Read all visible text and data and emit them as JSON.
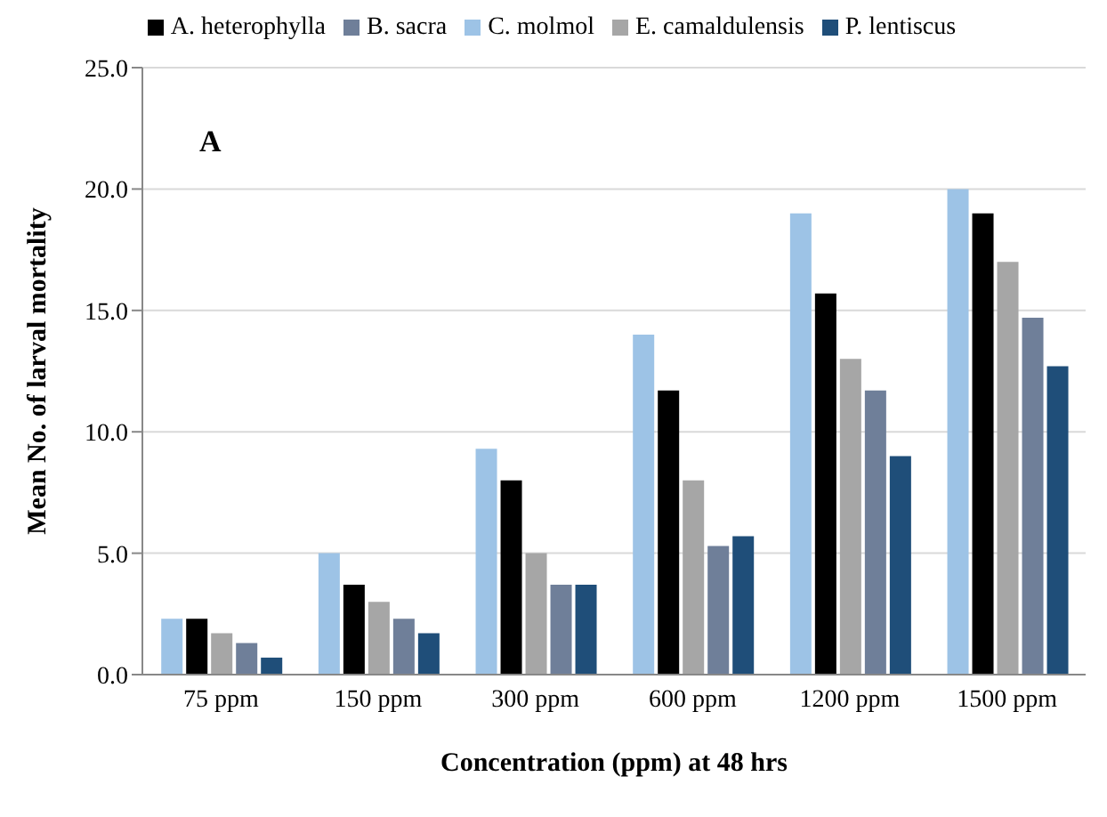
{
  "chart_data": {
    "type": "bar",
    "categories": [
      "75 ppm",
      "150 ppm",
      "300 ppm",
      "600 ppm",
      "1200 ppm",
      "1500 ppm"
    ],
    "series": [
      {
        "name": "C. molmol",
        "color": "#9dc3e6",
        "values": [
          2.3,
          5.0,
          9.3,
          14.0,
          19.0,
          20.0
        ]
      },
      {
        "name": "A. heterophylla",
        "color": "#000000",
        "values": [
          2.3,
          3.7,
          8.0,
          11.7,
          15.7,
          19.0
        ]
      },
      {
        "name": "E. camaldulensis",
        "color": "#a6a6a6",
        "values": [
          1.7,
          3.0,
          5.0,
          8.0,
          13.0,
          17.0
        ]
      },
      {
        "name": "B. sacra",
        "color": "#6f7f99",
        "values": [
          1.3,
          2.3,
          3.7,
          5.3,
          11.7,
          14.7
        ]
      },
      {
        "name": "P. lentiscus",
        "color": "#1f4e79",
        "values": [
          0.7,
          1.7,
          3.7,
          5.7,
          9.0,
          12.7
        ]
      }
    ],
    "xlabel": "Concentration (ppm)  at 48 hrs",
    "ylabel": "Mean No. of larval mortality",
    "ylim": [
      0,
      25
    ],
    "yticks": [
      {
        "value": 0,
        "label": "0.0"
      },
      {
        "value": 5,
        "label": "5.0"
      },
      {
        "value": 10,
        "label": "10.0"
      },
      {
        "value": 15,
        "label": "15.0"
      },
      {
        "value": 20,
        "label": "20.0"
      },
      {
        "value": 25,
        "label": "25.0"
      }
    ],
    "grid": "y",
    "legend": "top",
    "annotations": [
      "A"
    ]
  }
}
